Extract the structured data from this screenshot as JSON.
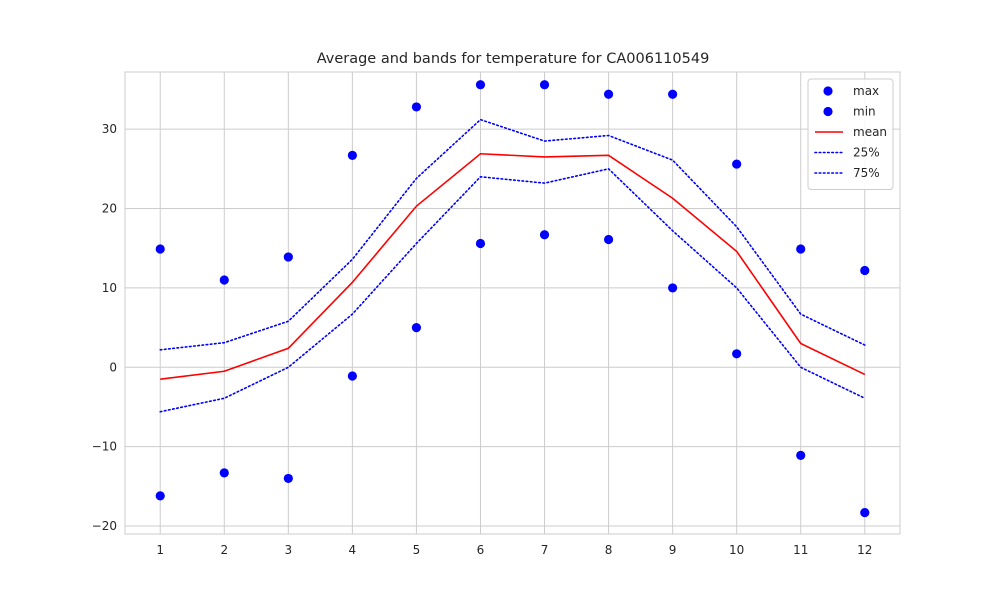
{
  "chart_data": {
    "type": "line",
    "title": "Average and bands for temperature for  CA006110549",
    "xlabel": "",
    "ylabel": "",
    "x": [
      1,
      2,
      3,
      4,
      5,
      6,
      7,
      8,
      9,
      10,
      11,
      12
    ],
    "x_ticks": [
      "1",
      "2",
      "3",
      "4",
      "5",
      "6",
      "7",
      "8",
      "9",
      "10",
      "11",
      "12"
    ],
    "y_ticks": [
      -20,
      -10,
      0,
      10,
      20,
      30
    ],
    "y_tick_labels": [
      "−20",
      "−10",
      "0",
      "10",
      "20",
      "30"
    ],
    "xlim": [
      0.45,
      12.55
    ],
    "ylim": [
      -21,
      37.2
    ],
    "grid": true,
    "legend_position": "top-right",
    "series": [
      {
        "name": "max",
        "kind": "scatter",
        "color": "#0000ff",
        "values": [
          14.9,
          11.0,
          13.9,
          26.7,
          32.8,
          35.6,
          35.6,
          34.4,
          34.4,
          25.6,
          14.9,
          12.2
        ]
      },
      {
        "name": "min",
        "kind": "scatter",
        "color": "#0000ff",
        "values": [
          -16.2,
          -13.3,
          -14.0,
          -1.1,
          5.0,
          15.6,
          16.7,
          16.1,
          10.0,
          1.7,
          -11.1,
          -18.3
        ]
      },
      {
        "name": "mean",
        "kind": "line",
        "style": "solid",
        "color": "#ff0000",
        "values": [
          -1.5,
          -0.5,
          2.4,
          10.7,
          20.3,
          26.9,
          26.5,
          26.7,
          21.3,
          14.6,
          3.0,
          -0.9
        ]
      },
      {
        "name": "25%",
        "kind": "line",
        "style": "dotted",
        "color": "#0000ff",
        "values": [
          2.2,
          3.1,
          5.8,
          13.6,
          23.8,
          31.2,
          28.5,
          29.2,
          26.1,
          17.7,
          6.7,
          2.8
        ]
      },
      {
        "name": "75%",
        "kind": "line",
        "style": "dotted",
        "color": "#0000ff",
        "values": [
          -5.6,
          -3.9,
          0.0,
          6.7,
          15.6,
          24.0,
          23.2,
          25.0,
          17.2,
          10.0,
          0.0,
          -3.9
        ]
      }
    ]
  }
}
